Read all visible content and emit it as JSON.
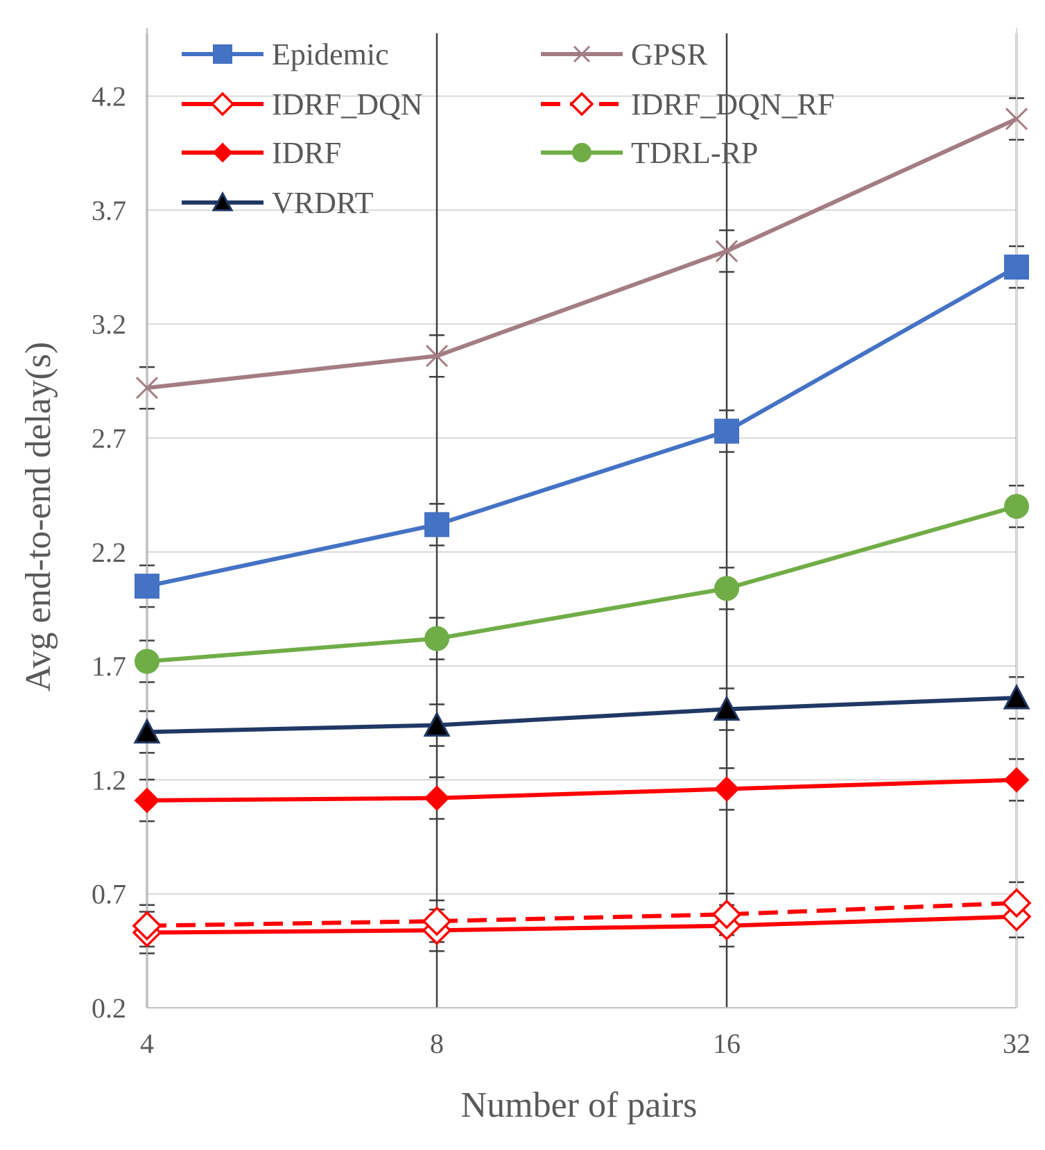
{
  "chart_data": {
    "type": "line",
    "title": "",
    "xlabel": "Number of pairs",
    "ylabel": "Avg end-to-end delay(s)",
    "categories": [
      "4",
      "8",
      "16",
      "32"
    ],
    "ylim": [
      0.2,
      4.5
    ],
    "yticks": [
      "0.2",
      "0.7",
      "1.2",
      "1.7",
      "2.2",
      "2.7",
      "3.2",
      "3.7",
      "4.2"
    ],
    "legend_position": "top",
    "series": [
      {
        "name": "Epidemic",
        "values": [
          2.05,
          2.32,
          2.73,
          3.45
        ],
        "color": "#4472c4",
        "marker": "square",
        "dashed": false
      },
      {
        "name": "GPSR",
        "values": [
          2.92,
          3.06,
          3.52,
          4.1
        ],
        "color": "#a47d84",
        "marker": "x",
        "dashed": false
      },
      {
        "name": "IDRF_DQN",
        "values": [
          0.53,
          0.54,
          0.56,
          0.6
        ],
        "color": "#ff0000",
        "marker": "diamond-open",
        "dashed": false
      },
      {
        "name": "IDRF_DQN_RF",
        "values": [
          0.56,
          0.58,
          0.61,
          0.66
        ],
        "color": "#ff0000",
        "marker": "diamond-open",
        "dashed": true
      },
      {
        "name": "IDRF",
        "values": [
          1.11,
          1.12,
          1.16,
          1.2
        ],
        "color": "#ff0000",
        "marker": "diamond",
        "dashed": false
      },
      {
        "name": "TDRL-RP",
        "values": [
          1.72,
          1.82,
          2.04,
          2.4
        ],
        "color": "#70ad47",
        "marker": "circle",
        "dashed": false
      },
      {
        "name": "VRDRT",
        "values": [
          1.41,
          1.44,
          1.51,
          1.56
        ],
        "color": "#203864",
        "marker": "triangle",
        "dashed": false
      }
    ]
  }
}
